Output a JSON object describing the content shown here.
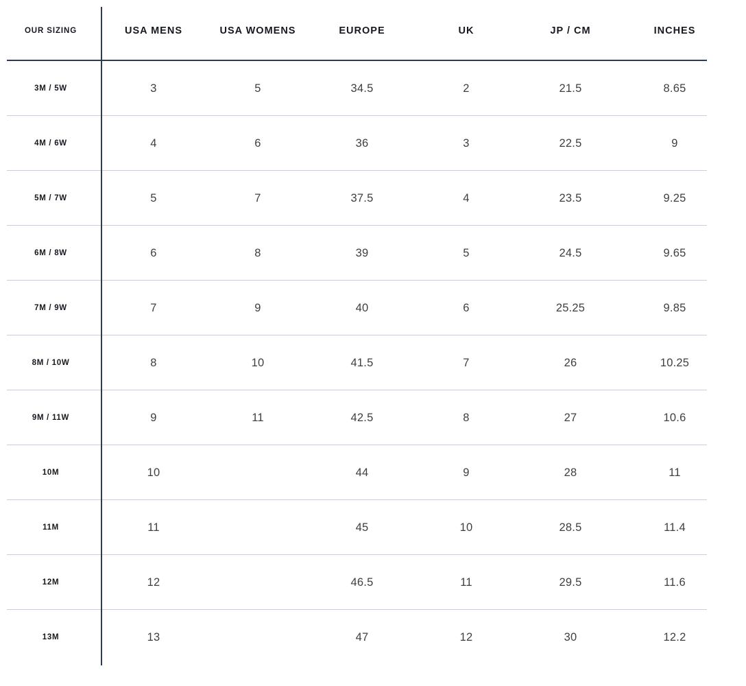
{
  "colors": {
    "line_dark": "#2a3b52",
    "line_light": "#c9cdd5",
    "header_text": "#15191f",
    "value_text": "#3c3f45"
  },
  "table": {
    "columns": [
      {
        "label": "OUR SIZING"
      },
      {
        "label": "USA MENS"
      },
      {
        "label": "USA WOMENS"
      },
      {
        "label": "EUROPE"
      },
      {
        "label": "UK"
      },
      {
        "label": "JP / CM"
      },
      {
        "label": "INCHES"
      }
    ],
    "rows": [
      [
        "3M / 5W",
        "3",
        "5",
        "34.5",
        "2",
        "21.5",
        "8.65"
      ],
      [
        "4M / 6W",
        "4",
        "6",
        "36",
        "3",
        "22.5",
        "9"
      ],
      [
        "5M / 7W",
        "5",
        "7",
        "37.5",
        "4",
        "23.5",
        "9.25"
      ],
      [
        "6M / 8W",
        "6",
        "8",
        "39",
        "5",
        "24.5",
        "9.65"
      ],
      [
        "7M / 9W",
        "7",
        "9",
        "40",
        "6",
        "25.25",
        "9.85"
      ],
      [
        "8M / 10W",
        "8",
        "10",
        "41.5",
        "7",
        "26",
        "10.25"
      ],
      [
        "9M / 11W",
        "9",
        "11",
        "42.5",
        "8",
        "27",
        "10.6"
      ],
      [
        "10M",
        "10",
        "",
        "44",
        "9",
        "28",
        "11"
      ],
      [
        "11M",
        "11",
        "",
        "45",
        "10",
        "28.5",
        "11.4"
      ],
      [
        "12M",
        "12",
        "",
        "46.5",
        "11",
        "29.5",
        "11.6"
      ],
      [
        "13M",
        "13",
        "",
        "47",
        "12",
        "30",
        "12.2"
      ]
    ]
  },
  "chart_data": {
    "type": "table",
    "title": "Shoe size conversion chart",
    "columns": [
      "OUR SIZING",
      "USA MENS",
      "USA WOMENS",
      "EUROPE",
      "UK",
      "JP / CM",
      "INCHES"
    ],
    "rows": [
      [
        "3M / 5W",
        "3",
        "5",
        "34.5",
        "2",
        "21.5",
        "8.65"
      ],
      [
        "4M / 6W",
        "4",
        "6",
        "36",
        "3",
        "22.5",
        "9"
      ],
      [
        "5M / 7W",
        "5",
        "7",
        "37.5",
        "4",
        "23.5",
        "9.25"
      ],
      [
        "6M / 8W",
        "6",
        "8",
        "39",
        "5",
        "24.5",
        "9.65"
      ],
      [
        "7M / 9W",
        "7",
        "9",
        "40",
        "6",
        "25.25",
        "9.85"
      ],
      [
        "8M / 10W",
        "8",
        "10",
        "41.5",
        "7",
        "26",
        "10.25"
      ],
      [
        "9M / 11W",
        "9",
        "11",
        "42.5",
        "8",
        "27",
        "10.6"
      ],
      [
        "10M",
        "10",
        "",
        "44",
        "9",
        "28",
        "11"
      ],
      [
        "11M",
        "11",
        "",
        "45",
        "10",
        "28.5",
        "11.4"
      ],
      [
        "12M",
        "12",
        "",
        "46.5",
        "11",
        "29.5",
        "11.6"
      ],
      [
        "13M",
        "13",
        "",
        "47",
        "12",
        "30",
        "12.2"
      ]
    ],
    "layout_hints": {
      "first_column_is_row_label": true,
      "vertical_rule_after_first_column": true,
      "dark_rule_under_header": true,
      "light_rules_between_rows": true,
      "no_outer_border": true
    }
  }
}
